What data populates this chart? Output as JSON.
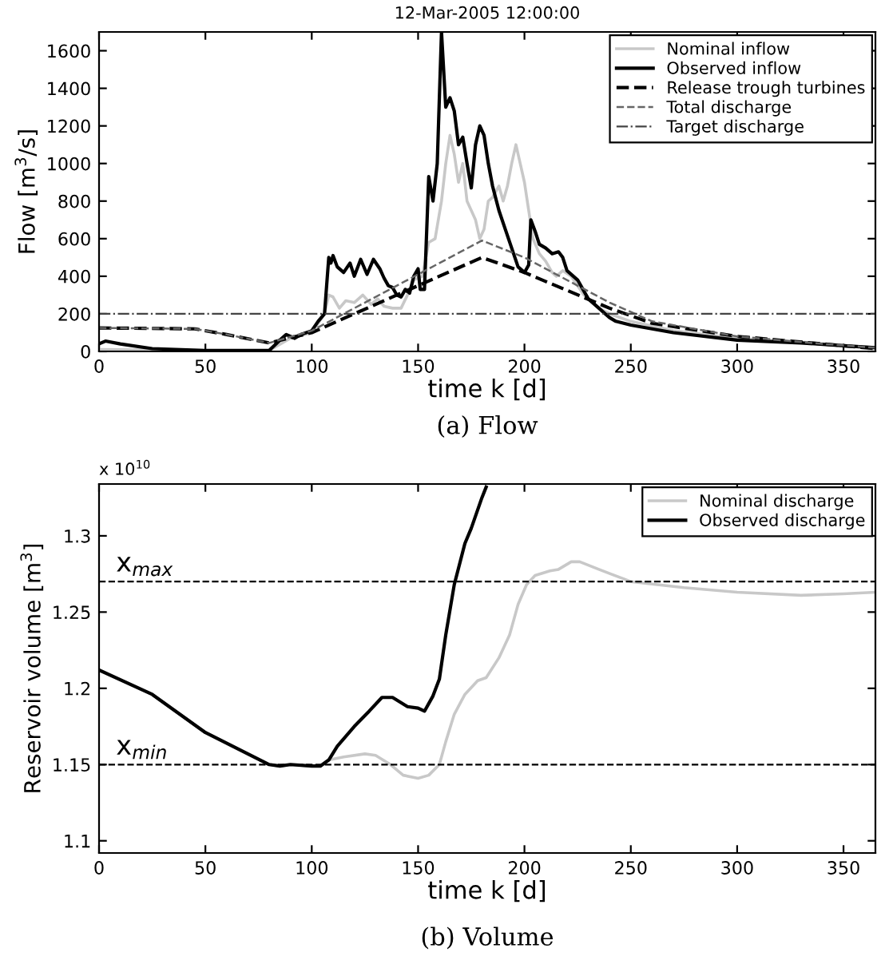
{
  "chart_data": [
    {
      "type": "line",
      "title": "12-Mar-2005 12:00:00",
      "xlabel": "time k [d]",
      "ylabel": "Flow [m$^{3}$/s]",
      "xlim": [
        0,
        365
      ],
      "xticks": [
        0,
        50,
        100,
        150,
        200,
        250,
        300,
        350
      ],
      "ylim": [
        0,
        1700
      ],
      "yticks": [
        0,
        200,
        400,
        600,
        800,
        1000,
        1200,
        1400,
        1600
      ],
      "legend": "top right",
      "grid": false,
      "series": [
        {
          "name": "Nominal inflow",
          "color": "#c8c8c8",
          "line_style": "solid",
          "x": [
            0,
            50,
            80,
            90,
            100,
            106,
            108,
            110,
            113,
            116,
            120,
            124,
            128,
            131,
            134,
            138,
            142,
            145,
            148,
            152,
            155,
            158,
            161,
            163,
            165,
            167,
            169,
            171,
            173,
            175,
            177,
            179,
            181,
            183,
            185,
            188,
            190,
            192,
            194,
            196,
            198,
            200,
            202,
            204,
            207,
            210,
            213,
            215,
            218,
            222,
            228,
            235,
            240,
            250,
            270,
            300,
            330,
            365
          ],
          "values": [
            10,
            5,
            5,
            70,
            100,
            200,
            300,
            290,
            230,
            270,
            260,
            300,
            250,
            280,
            240,
            230,
            230,
            300,
            380,
            400,
            580,
            600,
            800,
            1000,
            1150,
            1050,
            900,
            1000,
            800,
            750,
            700,
            600,
            650,
            800,
            820,
            880,
            800,
            880,
            1000,
            1100,
            1000,
            900,
            750,
            600,
            520,
            480,
            420,
            400,
            430,
            400,
            300,
            230,
            200,
            160,
            110,
            70,
            50,
            20
          ]
        },
        {
          "name": "Observed inflow",
          "color": "#000000",
          "line_style": "solid",
          "x": [
            0,
            3,
            10,
            25,
            50,
            80,
            85,
            88,
            92,
            95,
            100,
            103,
            106,
            108,
            109,
            110,
            112,
            115,
            118,
            120,
            123,
            126,
            129,
            132,
            134,
            136,
            138,
            140,
            142,
            144,
            146,
            148,
            150,
            151,
            153,
            155,
            157,
            159,
            161,
            163,
            165,
            167,
            169,
            171,
            173,
            175,
            177,
            179,
            181,
            183,
            185,
            188,
            191,
            194,
            197,
            200,
            202,
            203,
            205,
            207,
            210,
            213,
            216,
            218,
            220,
            225,
            230,
            235,
            240,
            243,
            250,
            270,
            300,
            330,
            350,
            365
          ],
          "values": [
            40,
            55,
            40,
            15,
            5,
            5,
            60,
            90,
            70,
            90,
            110,
            160,
            200,
            500,
            470,
            510,
            450,
            420,
            470,
            400,
            490,
            410,
            490,
            440,
            390,
            350,
            340,
            300,
            290,
            330,
            310,
            400,
            440,
            330,
            330,
            930,
            800,
            1000,
            1700,
            1300,
            1350,
            1280,
            1100,
            1140,
            1000,
            870,
            1100,
            1200,
            1150,
            1000,
            880,
            750,
            650,
            550,
            450,
            420,
            460,
            700,
            640,
            570,
            550,
            520,
            530,
            500,
            430,
            380,
            280,
            230,
            180,
            160,
            140,
            100,
            60,
            45,
            30,
            20
          ]
        },
        {
          "name": "Release trough turbines",
          "color": "#000000",
          "line_style": "dashed",
          "x": [
            0,
            45,
            60,
            80,
            100,
            180,
            200,
            240,
            260,
            300,
            340,
            365
          ],
          "values": [
            125,
            120,
            90,
            45,
            100,
            500,
            420,
            230,
            150,
            80,
            40,
            15
          ]
        },
        {
          "name": "Total discharge",
          "color": "#666666",
          "line_style": "dashed",
          "x": [
            0,
            45,
            60,
            80,
            100,
            180,
            200,
            240,
            260,
            300,
            340,
            365
          ],
          "values": [
            125,
            120,
            90,
            45,
            110,
            590,
            500,
            260,
            160,
            80,
            40,
            20
          ]
        }
      ],
      "ref_lines": [
        {
          "axis": "y",
          "value": 200,
          "label": "Target discharge",
          "color": "#444444",
          "line_style": "dashdot"
        }
      ],
      "annotations": [
        "(a) Flow"
      ]
    },
    {
      "type": "line",
      "xlabel": "time k [d]",
      "ylabel": "Reservoir volume [m$^{3}$]",
      "xlim": [
        0,
        365
      ],
      "xticks": [
        0,
        50,
        100,
        150,
        200,
        250,
        300,
        350
      ],
      "ylim": [
        1.092,
        1.334
      ],
      "yticks": [
        1.1,
        1.15,
        1.2,
        1.25,
        1.3
      ],
      "legend": "top right",
      "grid": false,
      "series": [
        {
          "name": "Nominal discharge",
          "color": "#c8c8c8",
          "line_style": "solid",
          "x": [
            0,
            25,
            50,
            80,
            85,
            90,
            100,
            104,
            108,
            115,
            125,
            130,
            137,
            143,
            150,
            155,
            160,
            163,
            167,
            172,
            178,
            182,
            188,
            193,
            197,
            201,
            205,
            212,
            216,
            222,
            226,
            235,
            250,
            275,
            300,
            330,
            350,
            365
          ],
          "values": [
            1.212,
            1.196,
            1.171,
            1.15,
            1.149,
            1.15,
            1.149,
            1.149,
            1.153,
            1.155,
            1.157,
            1.156,
            1.15,
            1.143,
            1.141,
            1.143,
            1.15,
            1.165,
            1.183,
            1.196,
            1.205,
            1.207,
            1.22,
            1.235,
            1.255,
            1.268,
            1.274,
            1.277,
            1.278,
            1.283,
            1.283,
            1.278,
            1.27,
            1.266,
            1.263,
            1.261,
            1.262,
            1.263
          ]
        },
        {
          "name": "Observed discharge",
          "color": "#000000",
          "line_style": "solid",
          "x": [
            0,
            25,
            50,
            80,
            85,
            90,
            100,
            104,
            108,
            112,
            120,
            127,
            133,
            138,
            145,
            150,
            153,
            157,
            160,
            163,
            167,
            172,
            175,
            180,
            182
          ],
          "values": [
            1.212,
            1.196,
            1.171,
            1.15,
            1.149,
            1.15,
            1.149,
            1.149,
            1.153,
            1.162,
            1.175,
            1.185,
            1.194,
            1.194,
            1.188,
            1.187,
            1.185,
            1.195,
            1.206,
            1.235,
            1.268,
            1.295,
            1.305,
            1.325,
            1.332
          ]
        }
      ],
      "ref_lines": [
        {
          "axis": "y",
          "value": 1.27,
          "color": "#000000",
          "line_style": "dashed"
        },
        {
          "axis": "y",
          "value": 1.15,
          "color": "#000000",
          "line_style": "dashed"
        }
      ],
      "annotations": [
        "x 10$^{10}$",
        {
          "text": "x$_{max}$",
          "x": 8,
          "y": 1.27
        },
        {
          "text": "x$_{min}$",
          "x": 8,
          "y": 1.15
        },
        "(b) Volume"
      ]
    }
  ]
}
